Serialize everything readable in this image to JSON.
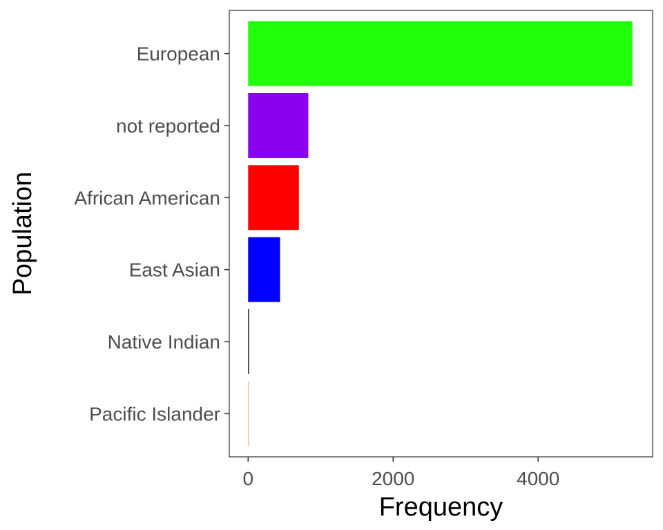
{
  "chart_data": {
    "type": "bar",
    "orientation": "horizontal",
    "xlabel": "Frequency",
    "ylabel": "Population",
    "categories": [
      "European",
      "not reported",
      "African American",
      "East Asian",
      "Native Indian",
      "Pacific Islander"
    ],
    "values": [
      5300,
      830,
      700,
      440,
      12,
      6
    ],
    "colors": [
      "#22ff0a",
      "#8a00ee",
      "#ff0000",
      "#0000ff",
      "#000000",
      "#f4a460"
    ],
    "xlim": [
      -260,
      5580
    ],
    "x_ticks": [
      0,
      2000,
      4000
    ],
    "x_tick_labels": [
      "0",
      "2000",
      "4000"
    ],
    "grid": false,
    "legend": "none"
  }
}
